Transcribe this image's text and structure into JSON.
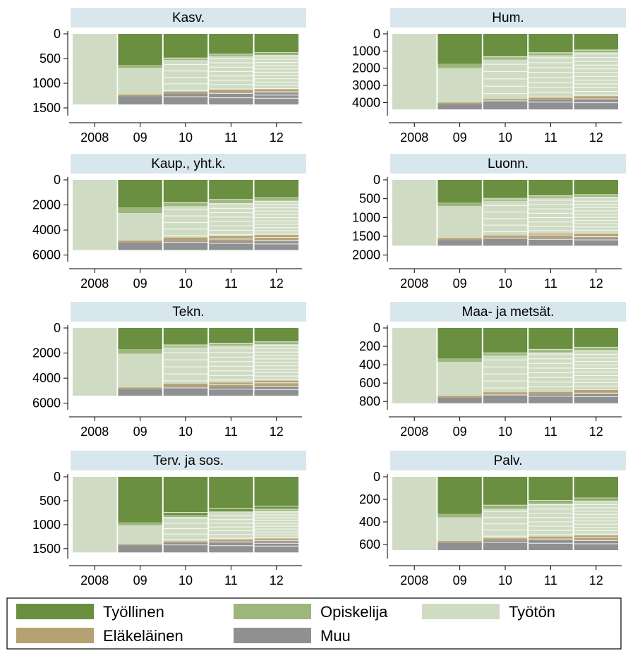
{
  "colors": {
    "Työllinen": "#6a8f41",
    "Opiskelija": "#9db67c",
    "Työtön": "#cfdcc3",
    "Eläkeläinen": "#b6a172",
    "Muu": "#8f9092",
    "title_bg": "#d8e6ee"
  },
  "legend": {
    "entries": [
      "Työllinen",
      "Opiskelija",
      "Työtön",
      "Eläkeläinen",
      "Muu"
    ]
  },
  "chart_data": [
    {
      "type": "bar",
      "title": "Kasv.",
      "categories": [
        "2008",
        "09",
        "10",
        "11",
        "12"
      ],
      "yticks": [
        0,
        500,
        1000,
        1500
      ],
      "ylim": [
        0,
        1600
      ],
      "yreversed": true,
      "total": 1430,
      "series": [
        {
          "name": "Työllinen",
          "values": [
            0,
            630,
            490,
            420,
            400
          ]
        },
        {
          "name": "Opiskelija",
          "values": [
            0,
            60,
            40,
            30,
            30
          ]
        },
        {
          "name": "Työtön",
          "values": [
            1430,
            540,
            640,
            680,
            690
          ]
        },
        {
          "name": "Eläkeläinen",
          "values": [
            0,
            30,
            40,
            60,
            70
          ]
        },
        {
          "name": "Muu",
          "values": [
            0,
            170,
            220,
            240,
            240
          ]
        }
      ]
    },
    {
      "type": "bar",
      "title": "Hum.",
      "categories": [
        "2008",
        "09",
        "10",
        "11",
        "12"
      ],
      "yticks": [
        0,
        1000,
        2000,
        3000,
        4000
      ],
      "ylim": [
        0,
        4600
      ],
      "yreversed": true,
      "total": 4400,
      "series": [
        {
          "name": "Työllinen",
          "values": [
            0,
            1750,
            1300,
            1100,
            950
          ]
        },
        {
          "name": "Opiskelija",
          "values": [
            0,
            250,
            200,
            150,
            130
          ]
        },
        {
          "name": "Työtön",
          "values": [
            4400,
            2000,
            2300,
            2450,
            2550
          ]
        },
        {
          "name": "Eläkeläinen",
          "values": [
            0,
            80,
            100,
            150,
            170
          ]
        },
        {
          "name": "Muu",
          "values": [
            0,
            320,
            500,
            550,
            600
          ]
        }
      ]
    },
    {
      "type": "bar",
      "title": "Kaup., yht.k.",
      "categories": [
        "2008",
        "09",
        "10",
        "11",
        "12"
      ],
      "yticks": [
        0,
        2000,
        4000,
        6000
      ],
      "ylim": [
        0,
        6300
      ],
      "yreversed": true,
      "total": 5600,
      "series": [
        {
          "name": "Työllinen",
          "values": [
            0,
            2200,
            1800,
            1600,
            1500
          ]
        },
        {
          "name": "Opiskelija",
          "values": [
            0,
            450,
            300,
            250,
            200
          ]
        },
        {
          "name": "Työtön",
          "values": [
            5600,
            2200,
            2500,
            2650,
            2700
          ]
        },
        {
          "name": "Eläkeläinen",
          "values": [
            0,
            150,
            300,
            400,
            500
          ]
        },
        {
          "name": "Muu",
          "values": [
            0,
            600,
            700,
            700,
            700
          ]
        }
      ]
    },
    {
      "type": "bar",
      "title": "Luonn.",
      "categories": [
        "2008",
        "09",
        "10",
        "11",
        "12"
      ],
      "yticks": [
        0,
        500,
        1000,
        1500,
        2000
      ],
      "ylim": [
        0,
        2100
      ],
      "yreversed": true,
      "total": 1750,
      "series": [
        {
          "name": "Työllinen",
          "values": [
            0,
            600,
            480,
            420,
            400
          ]
        },
        {
          "name": "Opiskelija",
          "values": [
            0,
            100,
            80,
            60,
            50
          ]
        },
        {
          "name": "Työtön",
          "values": [
            1750,
            850,
            920,
            950,
            960
          ]
        },
        {
          "name": "Eläkeläinen",
          "values": [
            0,
            50,
            70,
            120,
            140
          ]
        },
        {
          "name": "Muu",
          "values": [
            0,
            150,
            200,
            200,
            200
          ]
        }
      ]
    },
    {
      "type": "bar",
      "title": "Tekn.",
      "categories": [
        "2008",
        "09",
        "10",
        "11",
        "12"
      ],
      "yticks": [
        0,
        2000,
        4000,
        6000
      ],
      "ylim": [
        0,
        6300
      ],
      "yreversed": true,
      "total": 5400,
      "series": [
        {
          "name": "Työllinen",
          "values": [
            0,
            1700,
            1300,
            1200,
            1100
          ]
        },
        {
          "name": "Opiskelija",
          "values": [
            0,
            350,
            250,
            200,
            200
          ]
        },
        {
          "name": "Työtön",
          "values": [
            5400,
            2700,
            2900,
            2950,
            2900
          ]
        },
        {
          "name": "Eläkeläinen",
          "values": [
            0,
            150,
            250,
            350,
            450
          ]
        },
        {
          "name": "Muu",
          "values": [
            0,
            500,
            700,
            700,
            750
          ]
        }
      ]
    },
    {
      "type": "bar",
      "title": "Maa- ja metsät.",
      "categories": [
        "2008",
        "09",
        "10",
        "11",
        "12"
      ],
      "yticks": [
        0,
        200,
        400,
        600,
        800
      ],
      "ylim": [
        0,
        860
      ],
      "yreversed": true,
      "total": 820,
      "series": [
        {
          "name": "Työllinen",
          "values": [
            0,
            330,
            270,
            240,
            220
          ]
        },
        {
          "name": "Opiskelija",
          "values": [
            0,
            40,
            30,
            25,
            25
          ]
        },
        {
          "name": "Työtön",
          "values": [
            820,
            370,
            400,
            420,
            420
          ]
        },
        {
          "name": "Eläkeläinen",
          "values": [
            0,
            20,
            30,
            40,
            55
          ]
        },
        {
          "name": "Muu",
          "values": [
            0,
            60,
            90,
            95,
            100
          ]
        }
      ]
    },
    {
      "type": "bar",
      "title": "Terv. ja sos.",
      "categories": [
        "2008",
        "09",
        "10",
        "11",
        "12"
      ],
      "yticks": [
        0,
        500,
        1000,
        1500
      ],
      "ylim": [
        0,
        1650
      ],
      "yreversed": true,
      "total": 1580,
      "series": [
        {
          "name": "Työllinen",
          "values": [
            0,
            950,
            800,
            720,
            680
          ]
        },
        {
          "name": "Opiskelija",
          "values": [
            0,
            60,
            40,
            30,
            30
          ]
        },
        {
          "name": "Työtön",
          "values": [
            1580,
            400,
            510,
            560,
            580
          ]
        },
        {
          "name": "Eläkeläinen",
          "values": [
            0,
            20,
            30,
            50,
            60
          ]
        },
        {
          "name": "Muu",
          "values": [
            0,
            150,
            200,
            220,
            230
          ]
        }
      ]
    },
    {
      "type": "bar",
      "title": "Palv.",
      "categories": [
        "2008",
        "09",
        "10",
        "11",
        "12"
      ],
      "yticks": [
        0,
        200,
        400,
        600
      ],
      "ylim": [
        0,
        700
      ],
      "yreversed": true,
      "total": 650,
      "series": [
        {
          "name": "Työllinen",
          "values": [
            0,
            330,
            260,
            220,
            200
          ]
        },
        {
          "name": "Opiskelija",
          "values": [
            0,
            30,
            25,
            20,
            20
          ]
        },
        {
          "name": "Työtön",
          "values": [
            650,
            210,
            260,
            290,
            300
          ]
        },
        {
          "name": "Eläkeläinen",
          "values": [
            0,
            15,
            20,
            30,
            40
          ]
        },
        {
          "name": "Muu",
          "values": [
            0,
            65,
            85,
            90,
            90
          ]
        }
      ]
    }
  ]
}
